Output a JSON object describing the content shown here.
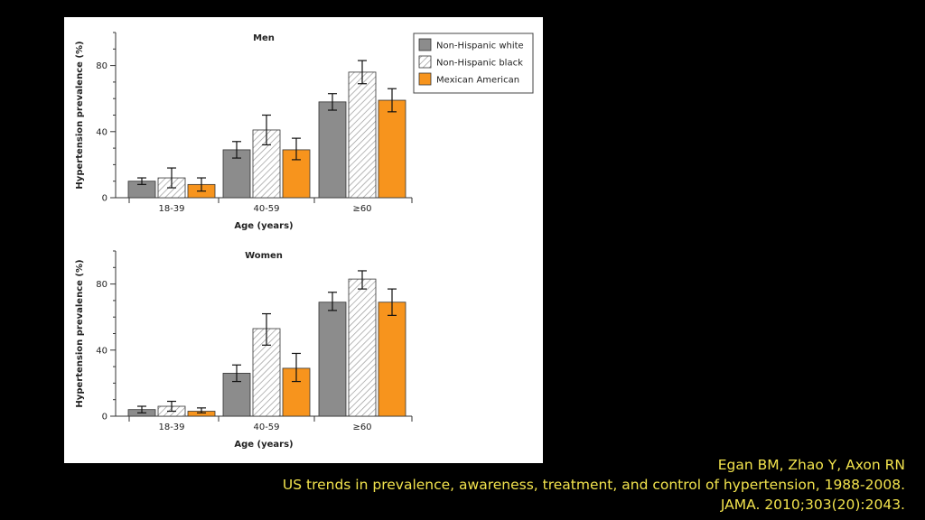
{
  "colors": {
    "white_group": "#8c8c8c",
    "black_group_hatch": "#9a9a9a",
    "mexican_group": "#f7941d",
    "citation_text": "#f2e34d"
  },
  "legend": [
    {
      "label": "Non-Hispanic white",
      "style": "solid-gray"
    },
    {
      "label": "Non-Hispanic black",
      "style": "hatched"
    },
    {
      "label": "Mexican American",
      "style": "solid-orange"
    }
  ],
  "chart_data": [
    {
      "type": "bar",
      "title": "Men",
      "xlabel": "Age (years)",
      "ylabel": "Hypertension prevalence (%)",
      "ylim": [
        0,
        100
      ],
      "yticks": [
        0,
        40,
        80
      ],
      "categories": [
        "18-39",
        "40-59",
        "≥60"
      ],
      "series": [
        {
          "name": "Non-Hispanic white",
          "values": [
            10,
            29,
            58
          ],
          "err_low": [
            8,
            24,
            53
          ],
          "err_high": [
            12,
            34,
            63
          ]
        },
        {
          "name": "Non-Hispanic black",
          "values": [
            12,
            41,
            76
          ],
          "err_low": [
            6,
            32,
            69
          ],
          "err_high": [
            18,
            50,
            83
          ]
        },
        {
          "name": "Mexican American",
          "values": [
            8,
            29,
            59
          ],
          "err_low": [
            4,
            23,
            52
          ],
          "err_high": [
            12,
            36,
            66
          ]
        }
      ],
      "legend_position": "top-right",
      "grid": false
    },
    {
      "type": "bar",
      "title": "Women",
      "xlabel": "Age (years)",
      "ylabel": "Hypertension prevalence (%)",
      "ylim": [
        0,
        100
      ],
      "yticks": [
        0,
        40,
        80
      ],
      "categories": [
        "18-39",
        "40-59",
        "≥60"
      ],
      "series": [
        {
          "name": "Non-Hispanic white",
          "values": [
            4,
            26,
            69
          ],
          "err_low": [
            2,
            21,
            64
          ],
          "err_high": [
            6,
            31,
            75
          ]
        },
        {
          "name": "Non-Hispanic black",
          "values": [
            6,
            53,
            83
          ],
          "err_low": [
            3,
            43,
            77
          ],
          "err_high": [
            9,
            62,
            88
          ]
        },
        {
          "name": "Mexican American",
          "values": [
            3,
            29,
            69
          ],
          "err_low": [
            2,
            21,
            61
          ],
          "err_high": [
            5,
            38,
            77
          ]
        }
      ],
      "legend_position": "none",
      "grid": false
    }
  ],
  "citation": {
    "line1": "Egan BM, Zhao Y, Axon RN",
    "line2": "US trends in prevalence, awareness, treatment, and control of hypertension, 1988-2008.",
    "line3": "JAMA. 2010;303(20):2043."
  }
}
